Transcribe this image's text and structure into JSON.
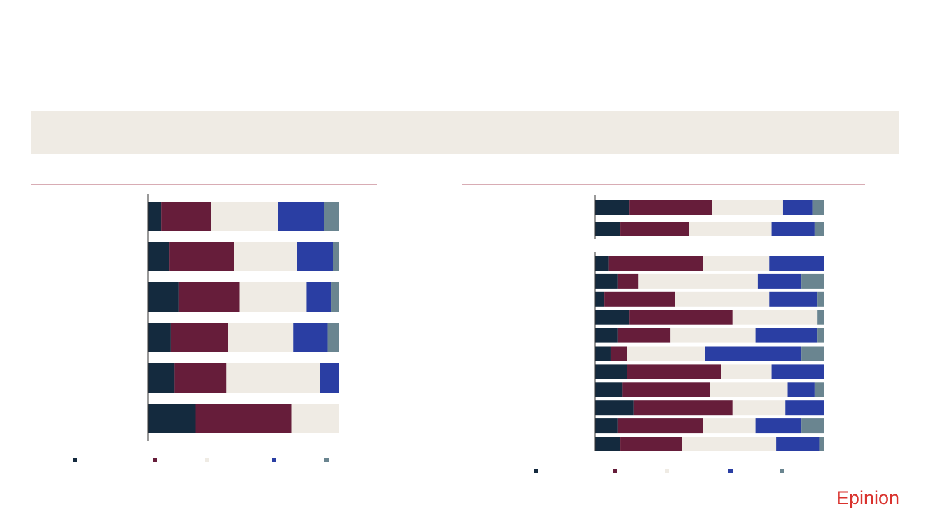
{
  "chart_data": [
    {
      "type": "stacked-bar-horizontal",
      "orientation": "horizontal",
      "stacked": true,
      "categories": [
        null,
        null,
        null,
        null,
        null,
        null
      ],
      "xlim": [
        0,
        100
      ],
      "series": [
        {
          "color": "#142a3e",
          "values": [
            7,
            11,
            16,
            12,
            14,
            25
          ]
        },
        {
          "color": "#661d3a",
          "values": [
            26,
            34,
            32,
            30,
            27,
            50
          ]
        },
        {
          "color": "#efebe4",
          "values": [
            35,
            33,
            35,
            34,
            49,
            25
          ]
        },
        {
          "color": "#2a3ea3",
          "values": [
            24,
            19,
            13,
            18,
            10,
            0
          ]
        },
        {
          "color": "#6a8590",
          "values": [
            8,
            3,
            4,
            6,
            0,
            0
          ]
        }
      ]
    },
    {
      "type": "stacked-bar-horizontal",
      "orientation": "horizontal",
      "stacked": true,
      "categories": [
        null,
        null,
        null,
        null,
        null,
        null,
        null,
        null,
        null,
        null,
        null,
        null,
        null
      ],
      "xlim": [
        0,
        100
      ],
      "series": [
        {
          "color": "#142a3e",
          "values": [
            15,
            11,
            6,
            10,
            4,
            15,
            10,
            7,
            14,
            12,
            17,
            10,
            11
          ]
        },
        {
          "color": "#661d3a",
          "values": [
            36,
            30,
            41,
            9,
            31,
            45,
            23,
            7,
            41,
            38,
            43,
            37,
            27
          ]
        },
        {
          "color": "#efebe4",
          "values": [
            31,
            36,
            29,
            52,
            41,
            37,
            37,
            34,
            22,
            34,
            23,
            23,
            41
          ]
        },
        {
          "color": "#2a3ea3",
          "values": [
            13,
            19,
            24,
            19,
            21,
            0,
            27,
            42,
            23,
            12,
            17,
            20,
            19
          ]
        },
        {
          "color": "#6a8590",
          "values": [
            5,
            4,
            0,
            10,
            3,
            3,
            3,
            10,
            0,
            4,
            0,
            10,
            2
          ]
        }
      ]
    }
  ],
  "logo": "Epinion"
}
